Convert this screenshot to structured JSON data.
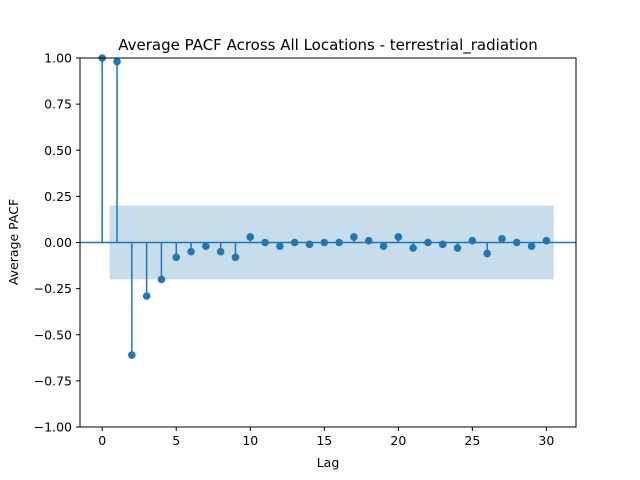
{
  "chart_data": {
    "type": "scatter",
    "subtype": "stem",
    "title": "Average PACF Across All Locations - terrestrial_radiation",
    "xlabel": "Lag",
    "ylabel": "Average PACF",
    "xlim": [
      -1.5,
      32.0
    ],
    "ylim": [
      -1.0,
      1.0
    ],
    "x_ticks": [
      0,
      5,
      10,
      15,
      20,
      25,
      30
    ],
    "x_tick_labels": [
      "0",
      "5",
      "10",
      "15",
      "20",
      "25",
      "30"
    ],
    "y_ticks": [
      -1.0,
      -0.75,
      -0.5,
      -0.25,
      0.0,
      0.25,
      0.5,
      0.75,
      1.0
    ],
    "y_tick_labels": [
      "−1.00",
      "−0.75",
      "−0.50",
      "−0.25",
      "0.00",
      "0.25",
      "0.50",
      "0.75",
      "1.00"
    ],
    "confidence_band": {
      "x_start": 0.5,
      "x_end": 30.5,
      "lower": -0.2,
      "upper": 0.2
    },
    "x": [
      0,
      1,
      2,
      3,
      4,
      5,
      6,
      7,
      8,
      9,
      10,
      11,
      12,
      13,
      14,
      15,
      16,
      17,
      18,
      19,
      20,
      21,
      22,
      23,
      24,
      25,
      26,
      27,
      28,
      29,
      30
    ],
    "values": [
      1.0,
      0.98,
      -0.61,
      -0.29,
      -0.2,
      -0.08,
      -0.05,
      -0.02,
      -0.05,
      -0.08,
      0.03,
      0.0,
      -0.02,
      0.0,
      -0.01,
      0.0,
      0.0,
      0.03,
      0.01,
      -0.02,
      0.03,
      -0.03,
      0.0,
      -0.01,
      -0.03,
      0.01,
      -0.06,
      0.02,
      0.0,
      -0.02,
      0.01
    ],
    "grid": false,
    "legend": "none",
    "colors": {
      "stem": "#1f77b4",
      "band": "#1f77b4",
      "zero_line": "#1f77b4"
    }
  }
}
